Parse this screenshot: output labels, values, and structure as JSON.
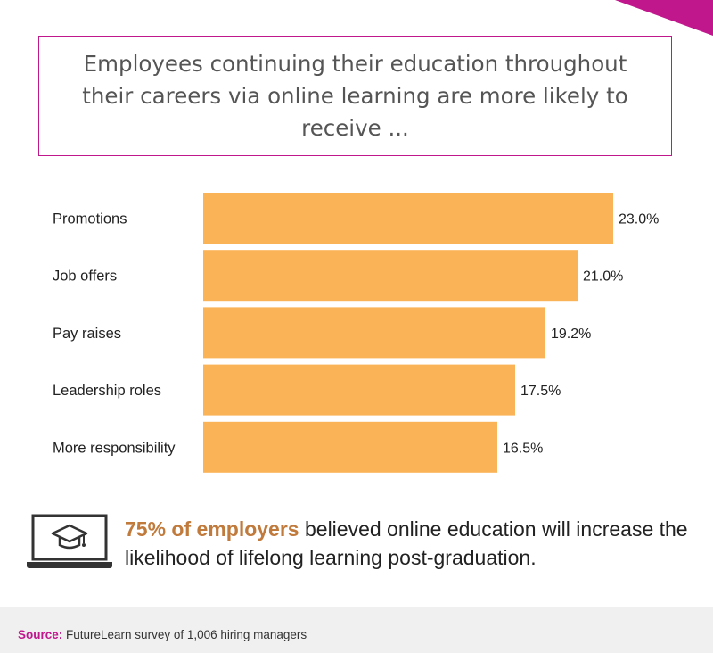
{
  "colors": {
    "accent": "#c0178d",
    "bar": "#fbb357",
    "highlight": "#c07a3c",
    "footer_bg": "#f0f0f0"
  },
  "title": "Employees continuing their education throughout their careers via online learning are more likely to receive ...",
  "chart_data": {
    "type": "bar",
    "orientation": "horizontal",
    "categories": [
      "Promotions",
      "Job offers",
      "Pay raises",
      "Leadership roles",
      "More responsibility"
    ],
    "values": [
      23.0,
      21.0,
      19.2,
      17.5,
      16.5
    ],
    "value_labels": [
      "23.0%",
      "21.0%",
      "19.2%",
      "17.5%",
      "16.5%"
    ],
    "unit": "%",
    "xlim": [
      0,
      23
    ],
    "grid": false,
    "legend": "none"
  },
  "callout": {
    "icon": "laptop-graduation-cap-icon",
    "highlight": "75% of employers",
    "rest": " believed online education will increase the likelihood of lifelong learning post-graduation."
  },
  "source": {
    "label": "Source:",
    "text": " FutureLearn survey of 1,006 hiring managers"
  }
}
